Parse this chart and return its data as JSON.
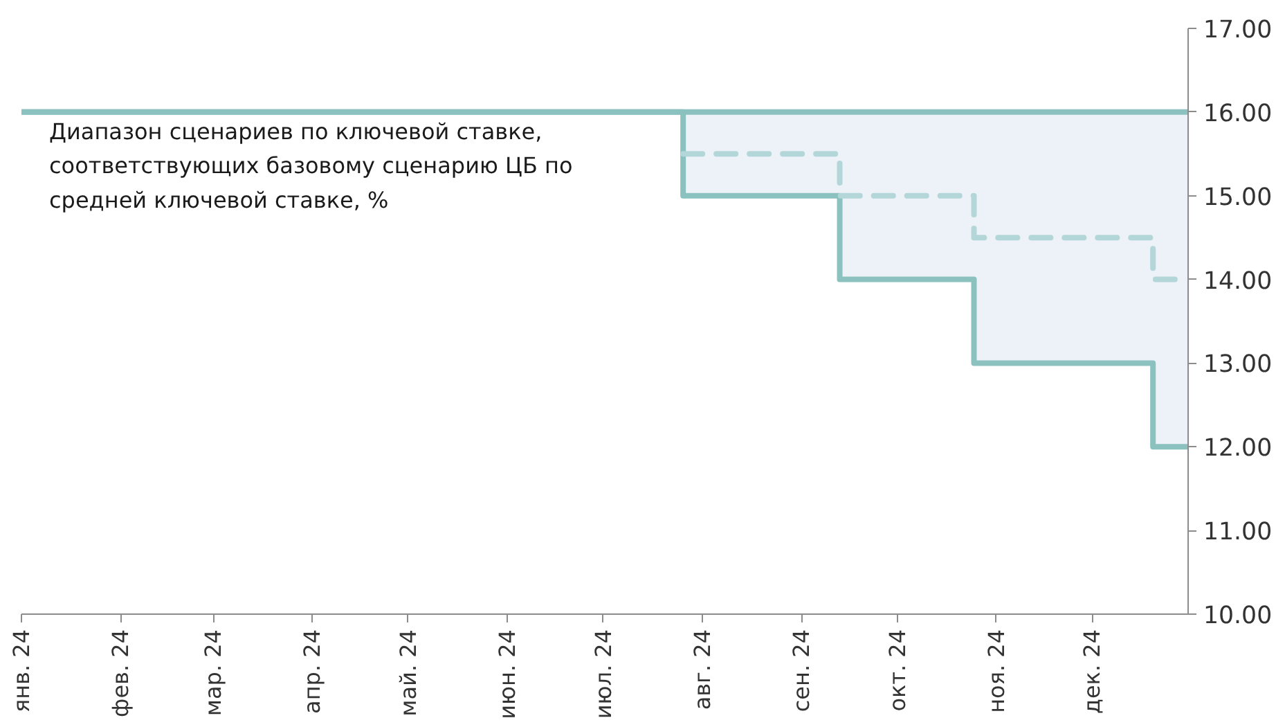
{
  "chart_data": {
    "type": "step",
    "x": [
      "2024-01-01",
      "2024-07-26",
      "2024-09-13",
      "2024-10-25",
      "2024-12-20",
      "2024-12-31"
    ],
    "series": [
      {
        "color": "#8bc2c0",
        "values": [
          16,
          16,
          16,
          16,
          16,
          16
        ]
      },
      {
        "color": "#8bc2c0",
        "values": [
          16,
          15,
          14,
          13,
          12,
          12
        ]
      },
      {
        "color": "#b3d6d9",
        "line_style": "dashed",
        "x": [
          "2024-07-26",
          "2024-09-13",
          "2024-10-25",
          "2024-12-20",
          "2024-12-31"
        ],
        "values": [
          15.5,
          15,
          14.5,
          14,
          14
        ],
        "lower": [
          15,
          14,
          13,
          12,
          12
        ],
        "upper": [
          16,
          16,
          16,
          16,
          16
        ]
      }
    ],
    "xlim": [
      "2024-01-01",
      "2024-12-31"
    ],
    "xticks": [
      {
        "value": "2024-01-01",
        "label": "янв. 24"
      },
      {
        "value": "2024-02-01",
        "label": "фев. 24"
      },
      {
        "value": "2024-03-01",
        "label": "мар. 24"
      },
      {
        "value": "2024-04-01",
        "label": "апр. 24"
      },
      {
        "value": "2024-05-01",
        "label": "май. 24"
      },
      {
        "value": "2024-06-01",
        "label": "июн. 24"
      },
      {
        "value": "2024-07-01",
        "label": "июл. 24"
      },
      {
        "value": "2024-08-01",
        "label": "авг. 24"
      },
      {
        "value": "2024-09-01",
        "label": "сен. 24"
      },
      {
        "value": "2024-10-01",
        "label": "окт. 24"
      },
      {
        "value": "2024-11-01",
        "label": "ноя. 24"
      },
      {
        "value": "2024-12-01",
        "label": "дек. 24"
      }
    ],
    "ylim": [
      10,
      17
    ],
    "yticks": [
      {
        "value": 10,
        "label": "10.00"
      },
      {
        "value": 11,
        "label": "11.00"
      },
      {
        "value": 12,
        "label": "12.00"
      },
      {
        "value": 13,
        "label": "13.00"
      },
      {
        "value": 14,
        "label": "14.00"
      },
      {
        "value": 15,
        "label": "15.00"
      },
      {
        "value": 16,
        "label": "16.00"
      },
      {
        "value": 17,
        "label": "17.00"
      }
    ],
    "annotations": [
      "Диапазон сценариев по ключевой ставке,\nсоответствующих базовому сценарию ЦБ по\nсредней ключевой ставке, %"
    ],
    "grid": false
  }
}
